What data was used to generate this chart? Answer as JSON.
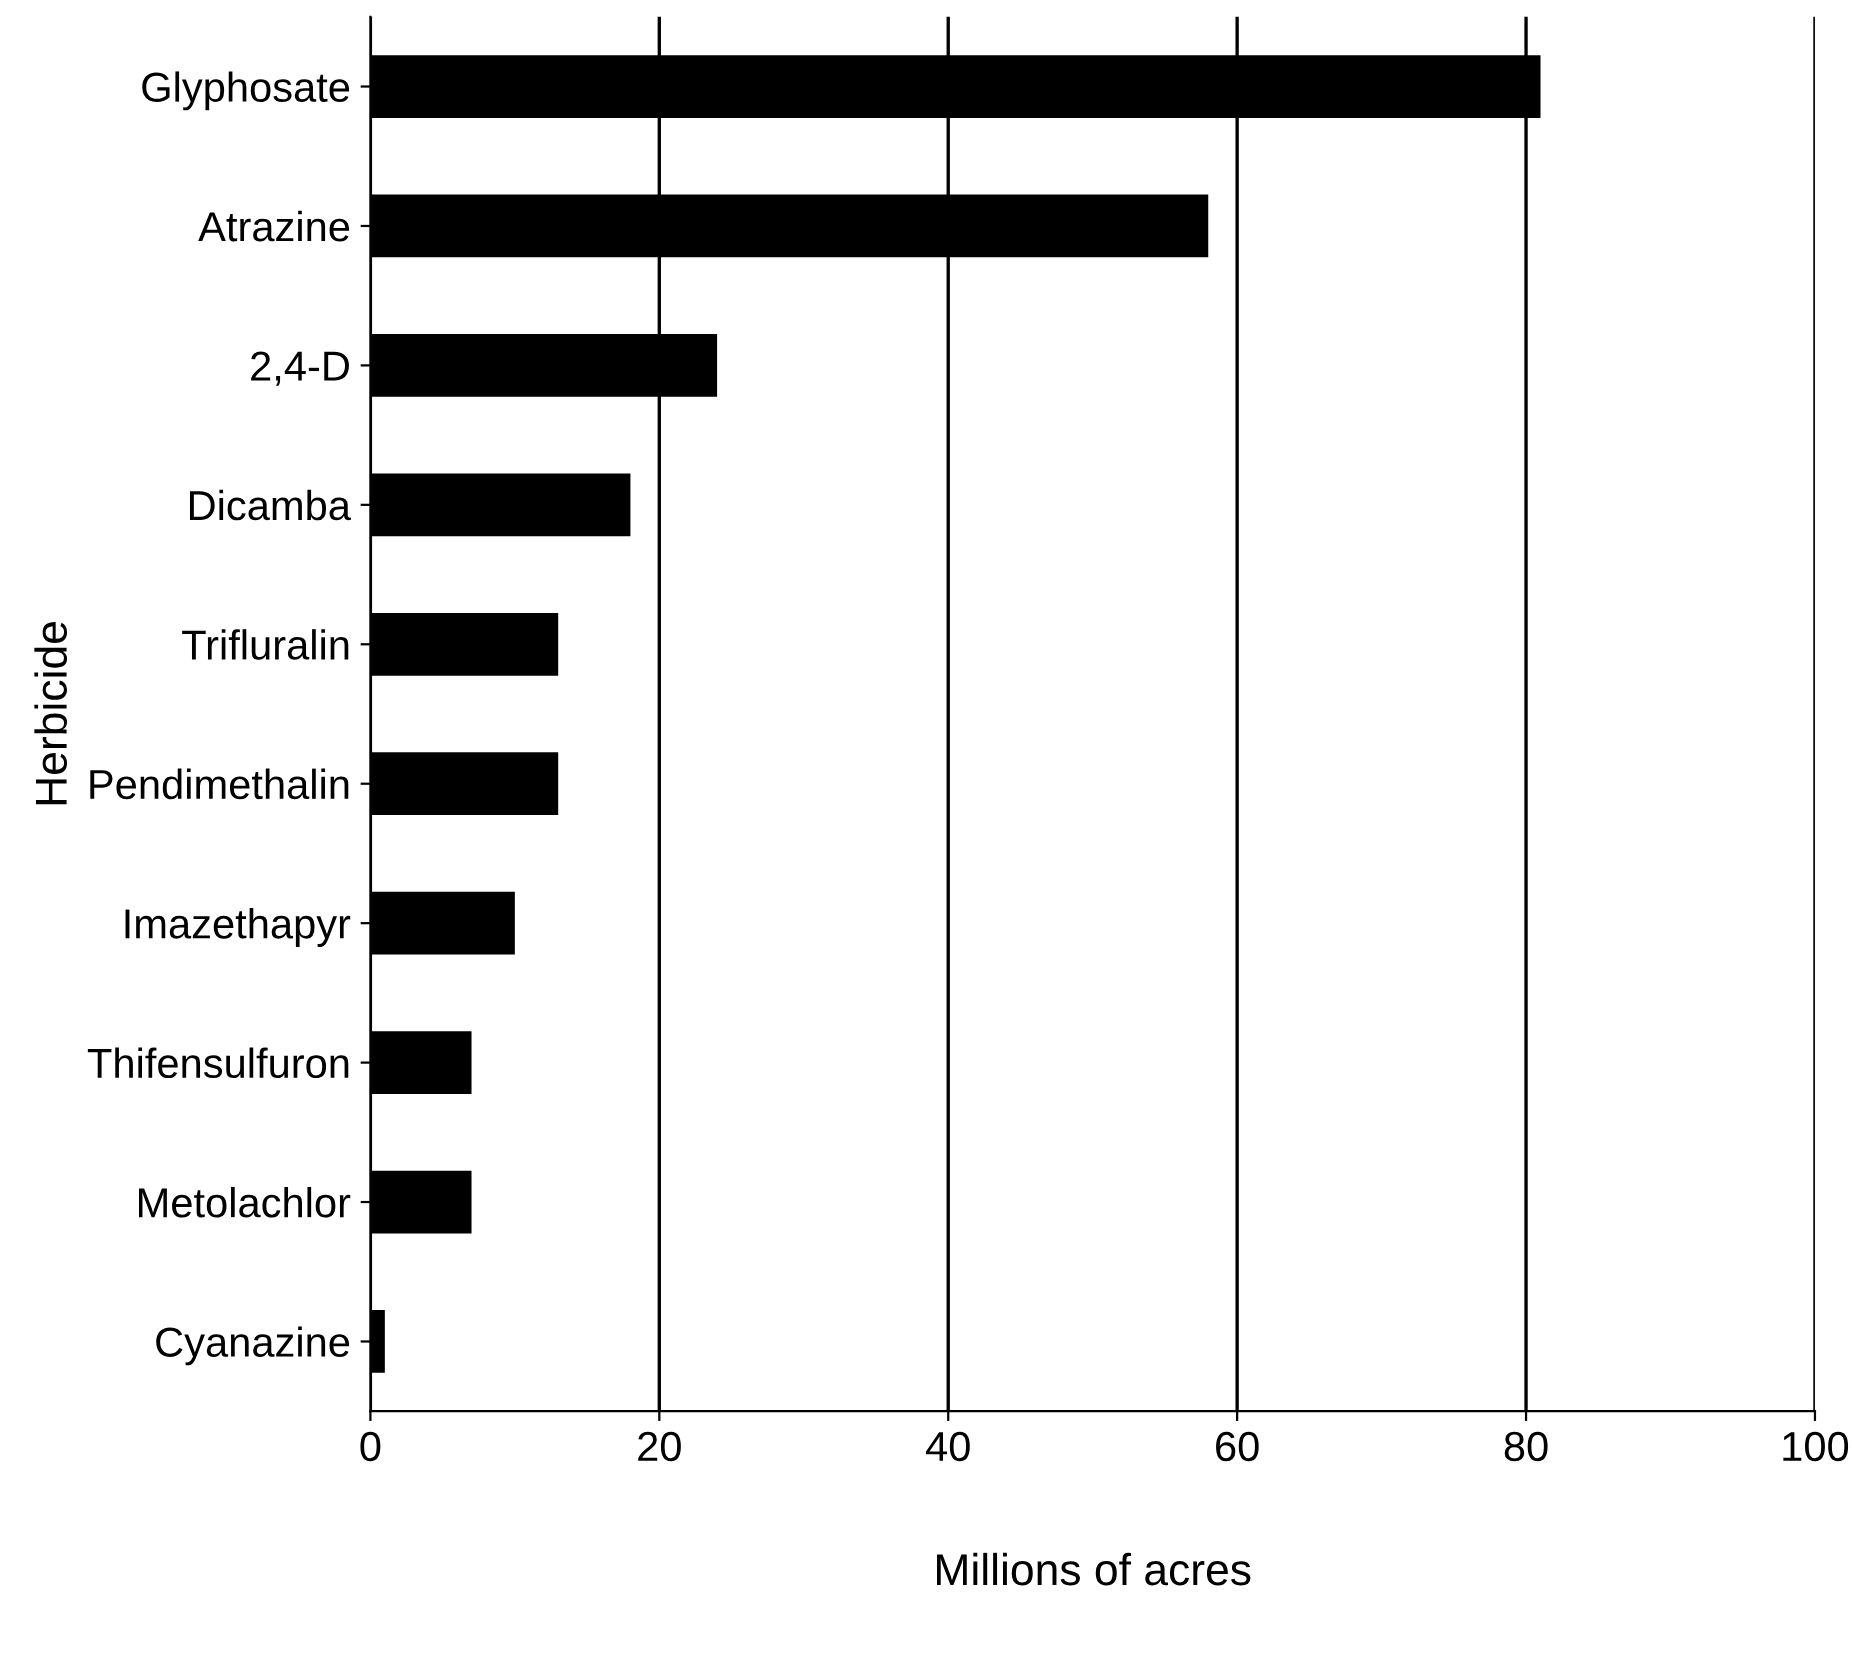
{
  "chart_data": {
    "type": "bar",
    "orientation": "horizontal",
    "xlabel": "Millions of acres",
    "ylabel": "Herbicide",
    "categories": [
      "Glyphosate",
      "Atrazine",
      "2,4-D",
      "Dicamba",
      "Trifluralin",
      "Pendimethalin",
      "Imazethapyr",
      "Thifensulfuron",
      "Metolachlor",
      "Cyanazine"
    ],
    "values": [
      81,
      58,
      24,
      18,
      13,
      13,
      10,
      7,
      7,
      1
    ],
    "color": "#000000",
    "xlim": [
      0,
      100
    ],
    "xticks": [
      0,
      20,
      40,
      60,
      80,
      100
    ],
    "grid": "x"
  }
}
